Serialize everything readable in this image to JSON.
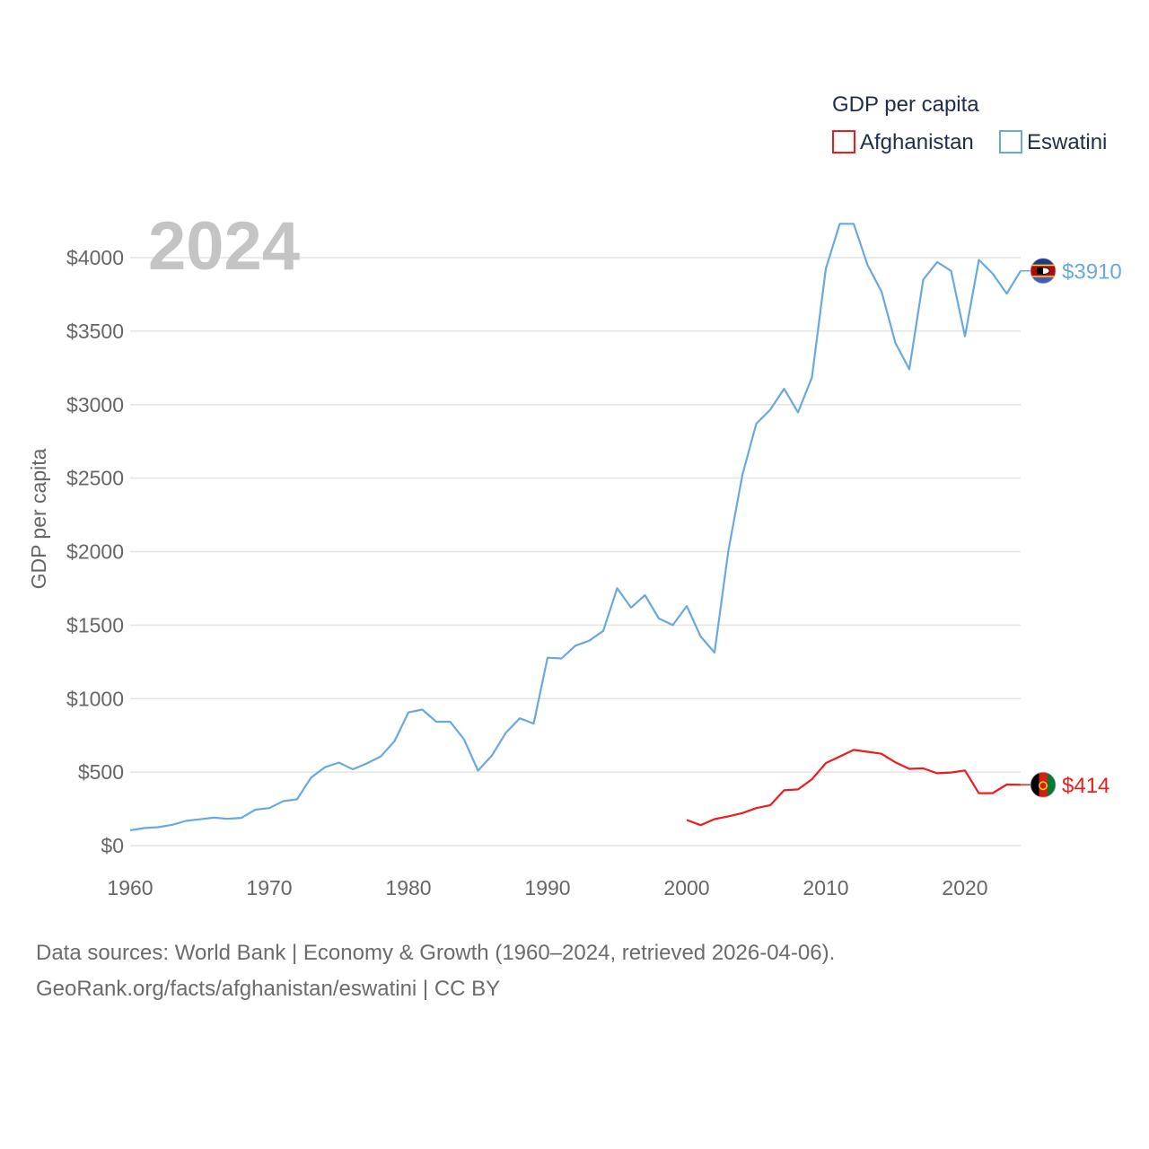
{
  "chart_data": {
    "type": "line",
    "title": "GDP per capita",
    "year_label": "2024",
    "ylabel": "GDP per capita",
    "xlabel": "",
    "xlim": [
      1960,
      2024
    ],
    "ylim": [
      0,
      4000
    ],
    "x_ticks": [
      1960,
      1970,
      1980,
      1990,
      2000,
      2010,
      2020
    ],
    "x_tick_labels": [
      "1960",
      "1970",
      "1980",
      "1990",
      "2000",
      "2010",
      "2020"
    ],
    "y_ticks": [
      0,
      500,
      1000,
      1500,
      2000,
      2500,
      3000,
      3500,
      4000
    ],
    "y_tick_labels": [
      "$0",
      "$500",
      "$1000",
      "$1500",
      "$2000",
      "$2500",
      "$3000",
      "$3500",
      "$4000"
    ],
    "grid": true,
    "legend_position": "top-right",
    "series": [
      {
        "name": "Afghanistan",
        "color": "#ee1c1c",
        "flag": "afghanistan-flag-icon",
        "end_label": "$414",
        "end_value": 414,
        "x": [
          2000,
          2001,
          2002,
          2003,
          2004,
          2005,
          2006,
          2007,
          2008,
          2009,
          2010,
          2011,
          2012,
          2013,
          2014,
          2015,
          2016,
          2017,
          2018,
          2019,
          2020,
          2021,
          2022,
          2023,
          2024
        ],
        "values": [
          174,
          139,
          180,
          199,
          221,
          255,
          274,
          376,
          382,
          451,
          561,
          606,
          651,
          638,
          625,
          566,
          522,
          525,
          492,
          497,
          511,
          356,
          357,
          415,
          414
        ]
      },
      {
        "name": "Eswatini",
        "color": "#6aa8e0",
        "flag": "eswatini-flag-icon",
        "end_label": "$3910",
        "end_value": 3910,
        "x": [
          1960,
          1961,
          1962,
          1963,
          1964,
          1965,
          1966,
          1967,
          1968,
          1969,
          1970,
          1971,
          1972,
          1973,
          1974,
          1975,
          1976,
          1977,
          1978,
          1979,
          1980,
          1981,
          1982,
          1983,
          1984,
          1985,
          1986,
          1987,
          1988,
          1989,
          1990,
          1991,
          1992,
          1993,
          1994,
          1995,
          1996,
          1997,
          1998,
          1999,
          2000,
          2001,
          2002,
          2003,
          2004,
          2005,
          2006,
          2007,
          2008,
          2009,
          2010,
          2011,
          2012,
          2013,
          2014,
          2015,
          2016,
          2017,
          2018,
          2019,
          2020,
          2021,
          2022,
          2023,
          2024
        ],
        "values": [
          104,
          119,
          125,
          141,
          168,
          179,
          190,
          182,
          189,
          244,
          255,
          302,
          315,
          462,
          533,
          565,
          519,
          559,
          606,
          711,
          906,
          925,
          843,
          843,
          722,
          510,
          613,
          767,
          866,
          830,
          1278,
          1273,
          1360,
          1394,
          1461,
          1751,
          1619,
          1704,
          1545,
          1500,
          1630,
          1423,
          1313,
          2010,
          2521,
          2870,
          2965,
          3108,
          2947,
          3185,
          3925,
          4230,
          4230,
          3950,
          3770,
          3420,
          3240,
          3850,
          3970,
          3910,
          3465,
          3985,
          3890,
          3755,
          3910
        ]
      }
    ]
  },
  "footer": {
    "line1": "Data sources: World Bank | Economy & Growth (1960–2024, retrieved 2026-04-06).",
    "line2": "GeoRank.org/facts/afghanistan/eswatini | CC BY"
  }
}
